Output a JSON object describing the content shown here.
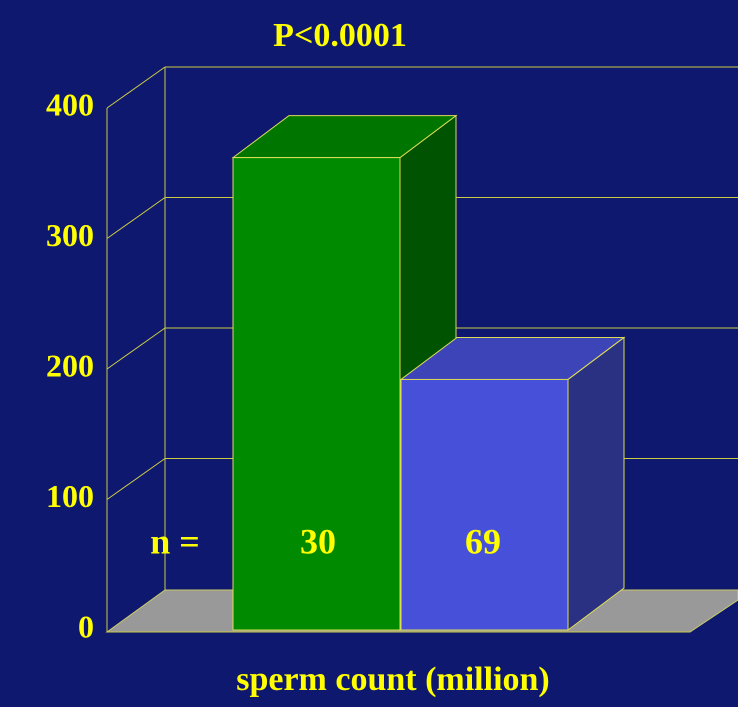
{
  "chart_data": {
    "type": "bar3d",
    "title": "P<0.0001",
    "x_label": "sperm count (million)",
    "categories": [
      null,
      null
    ],
    "series": [
      {
        "name": null,
        "colors": [
          "#008a00",
          "#4650d8"
        ],
        "values": [
          362,
          192
        ]
      }
    ],
    "annotations": [
      "n =",
      "30",
      "69"
    ],
    "ylim": [
      0,
      400
    ],
    "yticks": [
      0,
      100,
      200,
      300,
      400
    ],
    "grid": true
  }
}
